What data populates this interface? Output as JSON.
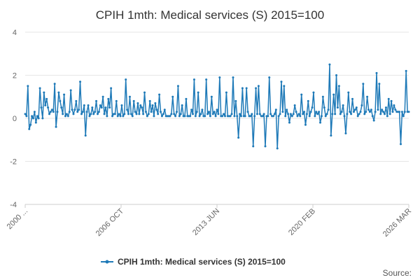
{
  "chart_data": {
    "type": "line",
    "title": "CPIH 1mth: Medical services (S) 2015=100",
    "xlabel": "",
    "ylabel": "",
    "ylim": [
      -4,
      4
    ],
    "yticks": [
      4,
      2,
      0,
      -2,
      -4
    ],
    "x_start": "2000 JAN",
    "x_end": "2026 MAR",
    "xtick_labels": [
      "2000 ...",
      "2006 OCT",
      "2013 JUN",
      "2020 FEB",
      "2026 MAR"
    ],
    "grid": true,
    "legend_position": "bottom-center",
    "series": [
      {
        "name": "CPIH 1mth: Medical services (S) 2015=100",
        "color": "#1f7ab8",
        "values": [
          0.2,
          0.1,
          1.5,
          -0.5,
          -0.3,
          0.1,
          0.0,
          0.3,
          -0.2,
          0.1,
          0.0,
          1.4,
          0.5,
          0.0,
          1.2,
          0.6,
          0.9,
          0.5,
          0.2,
          0.3,
          0.4,
          0.3,
          1.6,
          -0.4,
          0.3,
          1.2,
          0.8,
          0.5,
          0.2,
          1.1,
          0.1,
          0.2,
          0.1,
          0.3,
          1.3,
          0.4,
          0.2,
          0.4,
          0.8,
          0.3,
          0.4,
          1.7,
          0.2,
          0.3,
          0.6,
          -0.8,
          0.3,
          0.6,
          0.1,
          0.2,
          0.5,
          0.2,
          0.3,
          0.8,
          0.2,
          0.3,
          0.6,
          0.5,
          1.0,
          0.2,
          0.5,
          0.1,
          0.9,
          0.5,
          1.4,
          0.1,
          0.2,
          0.2,
          0.8,
          0.1,
          0.2,
          0.1,
          0.6,
          0.1,
          0.2,
          1.8,
          0.4,
          0.2,
          1.0,
          0.2,
          0.1,
          0.8,
          0.3,
          0.2,
          0.7,
          0.2,
          0.6,
          0.5,
          0.2,
          1.2,
          0.3,
          0.1,
          0.2,
          0.8,
          0.3,
          0.6,
          0.1,
          0.7,
          0.4,
          0.2,
          1.1,
          0.3,
          0.1,
          0.2,
          0.4,
          0.1,
          0.1,
          0.1,
          0.1,
          0.2,
          1.0,
          0.2,
          0.1,
          0.3,
          1.5,
          0.1,
          0.2,
          0.6,
          0.1,
          0.1,
          0.9,
          0.1,
          0.1,
          0.1,
          0.4,
          0.2,
          1.8,
          0.1,
          0.3,
          1.2,
          0.1,
          0.2,
          0.4,
          0.1,
          0.1,
          1.8,
          0.2,
          0.3,
          0.1,
          1.0,
          0.2,
          0.3,
          0.1,
          0.4,
          0.2,
          1.9,
          0.1,
          0.1,
          0.2,
          0.1,
          1.2,
          0.1,
          0.1,
          0.1,
          0.2,
          1.9,
          0.1,
          0.8,
          0.1,
          -0.9,
          0.2,
          0.1,
          1.4,
          0.1,
          0.1,
          1.4,
          0.3,
          0.1,
          0.1,
          0.2,
          -1.3,
          0.1,
          1.4,
          0.2,
          1.5,
          0.2,
          0.1,
          0.1,
          0.2,
          -1.3,
          0.1,
          0.1,
          1.9,
          0.2,
          0.1,
          0.1,
          0.2,
          0.4,
          -1.4,
          0.1,
          0.2,
          1.7,
          0.3,
          1.5,
          0.1,
          0.4,
          0.2,
          -0.2,
          0.2,
          0.1,
          0.2,
          0.6,
          0.3,
          0.1,
          0.2,
          0.1,
          1.1,
          0.2,
          0.3,
          -0.3,
          0.2,
          0.8,
          0.1,
          0.3,
          0.5,
          1.2,
          0.1,
          0.3,
          0.2,
          0.3,
          -0.2,
          0.1,
          1.0,
          0.5,
          0.1,
          0.2,
          0.4,
          2.5,
          -0.8,
          0.2,
          1.1,
          0.2,
          2.0,
          0.5,
          1.5,
          0.2,
          0.3,
          0.6,
          0.1,
          -0.7,
          0.2,
          1.2,
          0.3,
          0.2,
          0.9,
          0.3,
          0.4,
          0.5,
          0.1,
          0.2,
          0.3,
          0.6,
          1.6,
          0.2,
          0.3,
          1.0,
          0.4,
          0.3,
          0.4,
          0.1,
          -0.1,
          0.3,
          2.1,
          0.4,
          1.6,
          0.2,
          0.4,
          0.3,
          0.2,
          0.5,
          0.1,
          0.9,
          0.2,
          0.8,
          0.3,
          0.6,
          0.4,
          0.3,
          0.3,
          0.3,
          -1.2,
          0.3,
          0.1,
          0.3,
          2.2,
          0.3,
          0.3
        ]
      }
    ],
    "source_label": "Source:"
  }
}
